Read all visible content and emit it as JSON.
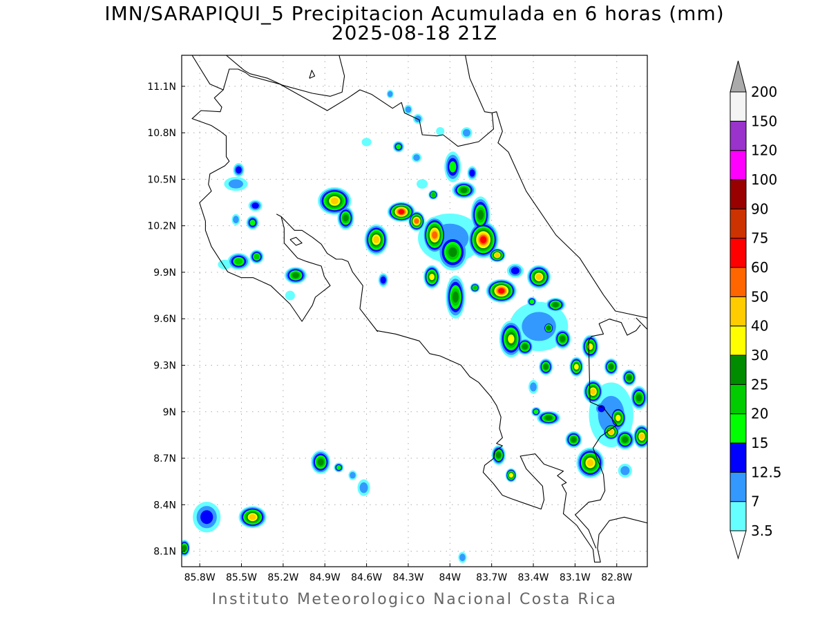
{
  "title": {
    "line1": "IMN/SARAPIQUI_5 Precipitacion Acumulada en 6 horas (mm)",
    "line2": "2025-08-18 21Z"
  },
  "footer": "Instituto Meteorologico Nacional Costa Rica",
  "map": {
    "lon_range": [
      -85.93,
      -82.58
    ],
    "lat_range": [
      8.0,
      11.3
    ],
    "lat_ticks": [
      {
        "value": 11.1,
        "label": "11.1N"
      },
      {
        "value": 10.8,
        "label": "10.8N"
      },
      {
        "value": 10.5,
        "label": "10.5N"
      },
      {
        "value": 10.2,
        "label": "10.2N"
      },
      {
        "value": 9.9,
        "label": "9.9N"
      },
      {
        "value": 9.6,
        "label": "9.6N"
      },
      {
        "value": 9.3,
        "label": "9.3N"
      },
      {
        "value": 9.0,
        "label": "9N"
      },
      {
        "value": 8.7,
        "label": "8.7N"
      },
      {
        "value": 8.4,
        "label": "8.4N"
      },
      {
        "value": 8.1,
        "label": "8.1N"
      }
    ],
    "lon_ticks": [
      {
        "value": -85.8,
        "label": "85.8W"
      },
      {
        "value": -85.5,
        "label": "85.5W"
      },
      {
        "value": -85.2,
        "label": "85.2W"
      },
      {
        "value": -84.9,
        "label": "84.9W"
      },
      {
        "value": -84.6,
        "label": "84.6W"
      },
      {
        "value": -84.3,
        "label": "84.3W"
      },
      {
        "value": -84.0,
        "label": "84W"
      },
      {
        "value": -83.7,
        "label": "83.7W"
      },
      {
        "value": -83.4,
        "label": "83.4W"
      },
      {
        "value": -83.1,
        "label": "83.1W"
      },
      {
        "value": -82.8,
        "label": "82.8W"
      }
    ],
    "precip_cells_lon_lat_rx_ry_level": [
      [
        -84.0,
        10.12,
        0.22,
        0.15,
        1
      ],
      [
        -83.36,
        9.55,
        0.2,
        0.15,
        1
      ],
      [
        -82.84,
        8.98,
        0.15,
        0.2,
        1
      ],
      [
        -84.83,
        10.36,
        0.11,
        0.08,
        7
      ],
      [
        -84.75,
        10.25,
        0.05,
        0.067,
        5
      ],
      [
        -84.53,
        10.11,
        0.075,
        0.09,
        7
      ],
      [
        -84.35,
        10.29,
        0.09,
        0.055,
        9
      ],
      [
        -84.24,
        10.23,
        0.05,
        0.055,
        8
      ],
      [
        -84.11,
        10.14,
        0.075,
        0.11,
        8
      ],
      [
        -83.98,
        10.03,
        0.1,
        0.11,
        5
      ],
      [
        -83.76,
        10.11,
        0.1,
        0.11,
        9
      ],
      [
        -83.9,
        10.43,
        0.075,
        0.045,
        5
      ],
      [
        -83.78,
        10.27,
        0.06,
        0.11,
        5
      ],
      [
        -83.66,
        10.01,
        0.05,
        0.036,
        7
      ],
      [
        -83.63,
        9.78,
        0.1,
        0.067,
        9
      ],
      [
        -84.13,
        9.87,
        0.05,
        0.067,
        6
      ],
      [
        -83.96,
        9.74,
        0.06,
        0.13,
        5
      ],
      [
        -83.36,
        9.87,
        0.075,
        0.067,
        7
      ],
      [
        -83.24,
        9.69,
        0.06,
        0.036,
        5
      ],
      [
        -83.56,
        9.47,
        0.075,
        0.11,
        6
      ],
      [
        -83.46,
        9.42,
        0.05,
        0.045,
        5
      ],
      [
        -83.29,
        9.54,
        0.03,
        0.03,
        5
      ],
      [
        -83.19,
        9.47,
        0.05,
        0.055,
        5
      ],
      [
        -83.31,
        9.29,
        0.04,
        0.045,
        5
      ],
      [
        -83.09,
        9.29,
        0.04,
        0.055,
        6
      ],
      [
        -82.99,
        9.42,
        0.05,
        0.067,
        6
      ],
      [
        -82.97,
        9.13,
        0.06,
        0.067,
        7
      ],
      [
        -82.84,
        9.29,
        0.04,
        0.045,
        5
      ],
      [
        -82.71,
        9.22,
        0.04,
        0.045,
        5
      ],
      [
        -82.64,
        9.09,
        0.05,
        0.067,
        5
      ],
      [
        -82.79,
        8.96,
        0.05,
        0.067,
        6
      ],
      [
        -82.84,
        8.87,
        0.05,
        0.045,
        7
      ],
      [
        -82.74,
        8.82,
        0.06,
        0.055,
        5
      ],
      [
        -82.62,
        8.84,
        0.05,
        0.067,
        7
      ],
      [
        -83.11,
        8.82,
        0.05,
        0.045,
        5
      ],
      [
        -82.99,
        8.67,
        0.09,
        0.09,
        7
      ],
      [
        -83.29,
        8.96,
        0.075,
        0.036,
        5
      ],
      [
        -83.38,
        9.0,
        0.025,
        0.022,
        3
      ],
      [
        -83.65,
        8.72,
        0.04,
        0.055,
        5
      ],
      [
        -83.56,
        8.59,
        0.03,
        0.036,
        6
      ],
      [
        -84.93,
        8.675,
        0.06,
        0.067,
        5
      ],
      [
        -84.8,
        8.64,
        0.025,
        0.022,
        3
      ],
      [
        -84.7,
        8.59,
        0.02,
        0.022,
        1
      ],
      [
        -84.62,
        8.51,
        0.035,
        0.045,
        1
      ],
      [
        -85.42,
        8.32,
        0.09,
        0.062,
        7
      ],
      [
        -85.75,
        8.32,
        0.09,
        0.09,
        2
      ],
      [
        -85.91,
        8.12,
        0.03,
        0.045,
        5
      ],
      [
        -83.91,
        8.06,
        0.02,
        0.027,
        1
      ],
      [
        -85.11,
        9.88,
        0.07,
        0.045,
        5
      ],
      [
        -85.15,
        9.75,
        0.025,
        0.022,
        0
      ],
      [
        -85.52,
        9.97,
        0.07,
        0.045,
        4
      ],
      [
        -85.39,
        10.0,
        0.04,
        0.036,
        4
      ],
      [
        -85.54,
        10.47,
        0.075,
        0.036,
        1
      ],
      [
        -85.52,
        10.56,
        0.03,
        0.036,
        2
      ],
      [
        -85.4,
        10.33,
        0.04,
        0.027,
        2
      ],
      [
        -85.42,
        10.22,
        0.035,
        0.036,
        3
      ],
      [
        -85.54,
        10.24,
        0.02,
        0.027,
        1
      ],
      [
        -85.62,
        9.95,
        0.04,
        0.022,
        0
      ],
      [
        -84.48,
        9.85,
        0.025,
        0.036,
        2
      ],
      [
        -84.37,
        10.71,
        0.03,
        0.027,
        3
      ],
      [
        -84.24,
        10.64,
        0.025,
        0.022,
        1
      ],
      [
        -84.43,
        11.05,
        0.015,
        0.018,
        1
      ],
      [
        -84.3,
        10.95,
        0.02,
        0.022,
        1
      ],
      [
        -84.23,
        10.89,
        0.025,
        0.022,
        1
      ],
      [
        -84.07,
        10.81,
        0.02,
        0.018,
        0
      ],
      [
        -83.88,
        10.8,
        0.03,
        0.027,
        1
      ],
      [
        -84.6,
        10.74,
        0.025,
        0.018,
        0
      ],
      [
        -83.98,
        10.58,
        0.05,
        0.09,
        3
      ],
      [
        -83.84,
        10.54,
        0.025,
        0.036,
        2
      ],
      [
        -84.12,
        10.4,
        0.025,
        0.022,
        4
      ],
      [
        -84.2,
        10.47,
        0.03,
        0.022,
        0
      ],
      [
        -83.82,
        9.8,
        0.025,
        0.022,
        4
      ],
      [
        -83.41,
        9.71,
        0.025,
        0.022,
        3
      ],
      [
        -83.4,
        9.16,
        0.025,
        0.036,
        1
      ],
      [
        -83.53,
        9.91,
        0.05,
        0.036,
        2
      ],
      [
        -82.74,
        8.62,
        0.04,
        0.036,
        1
      ],
      [
        -82.91,
        9.02,
        0.04,
        0.036,
        2
      ]
    ]
  },
  "colorbar": {
    "labels": [
      "3.5",
      "7",
      "12.5",
      "15",
      "20",
      "25",
      "30",
      "40",
      "50",
      "60",
      "75",
      "90",
      "100",
      "120",
      "150",
      "200"
    ],
    "colors": [
      "#66ffff",
      "#3399ff",
      "#0000ff",
      "#00ff00",
      "#00cc00",
      "#008c00",
      "#ffff00",
      "#ffcc00",
      "#ff6600",
      "#ff0000",
      "#cc3300",
      "#990000",
      "#ff00ff",
      "#9933cc",
      "#f4f4f4"
    ],
    "under_color": "#ffffff",
    "over_color": "#aaaaaa"
  }
}
